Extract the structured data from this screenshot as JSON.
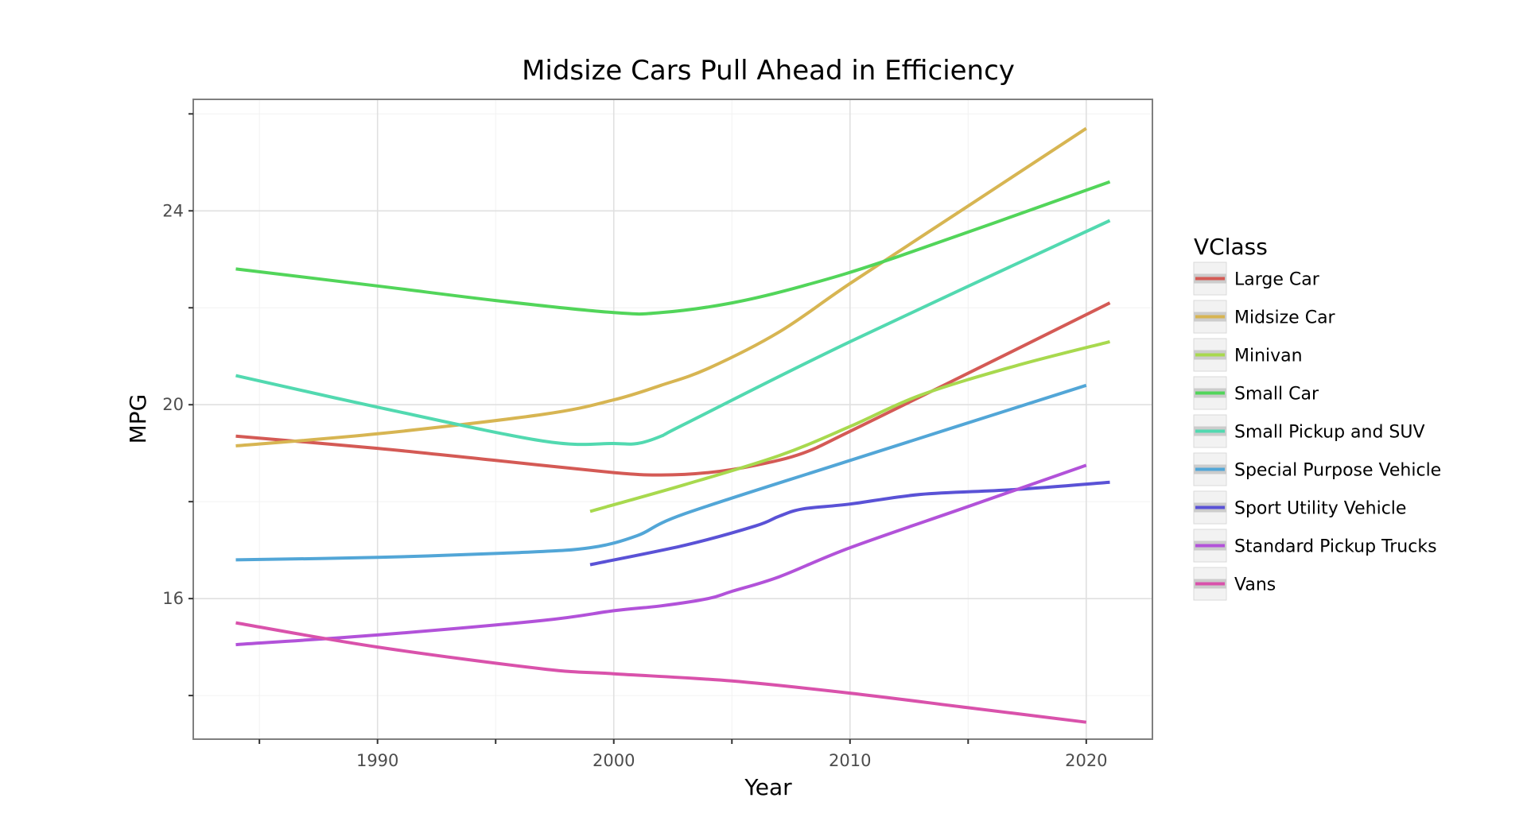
{
  "chart_data": {
    "type": "line",
    "title": "Midsize Cars Pull Ahead in Efficiency",
    "xlabel": "Year",
    "ylabel": "MPG",
    "xlim": [
      1982.2,
      2022.8
    ],
    "ylim": [
      13.1,
      26.3
    ],
    "x_ticks": [
      1990,
      2000,
      2010,
      2020
    ],
    "y_ticks": [
      16,
      20,
      24
    ],
    "grid": true,
    "legend": {
      "title": "VClass",
      "placement": "right"
    },
    "series": [
      {
        "name": "Large Car",
        "color": "#d45a55",
        "points": [
          [
            1984,
            19.35
          ],
          [
            1990,
            19.1
          ],
          [
            1995,
            18.85
          ],
          [
            2000,
            18.6
          ],
          [
            2002,
            18.55
          ],
          [
            2004,
            18.6
          ],
          [
            2006,
            18.75
          ],
          [
            2008,
            19.0
          ],
          [
            2010,
            19.45
          ],
          [
            2015,
            20.65
          ],
          [
            2021,
            22.1
          ]
        ]
      },
      {
        "name": "Midsize Car",
        "color": "#d7b552",
        "points": [
          [
            1984,
            19.15
          ],
          [
            1990,
            19.4
          ],
          [
            1997,
            19.8
          ],
          [
            2000,
            20.1
          ],
          [
            2002,
            20.4
          ],
          [
            2004,
            20.75
          ],
          [
            2007,
            21.5
          ],
          [
            2010,
            22.5
          ],
          [
            2015,
            24.1
          ],
          [
            2020,
            25.7
          ]
        ]
      },
      {
        "name": "Minivan",
        "color": "#a8d94e",
        "points": [
          [
            1999,
            17.8
          ],
          [
            2003,
            18.35
          ],
          [
            2007,
            18.95
          ],
          [
            2010,
            19.55
          ],
          [
            2013,
            20.2
          ],
          [
            2017,
            20.8
          ],
          [
            2021,
            21.3
          ]
        ]
      },
      {
        "name": "Small Car",
        "color": "#52d55a",
        "points": [
          [
            1984,
            22.8
          ],
          [
            1990,
            22.45
          ],
          [
            1995,
            22.15
          ],
          [
            2000,
            21.9
          ],
          [
            2002,
            21.9
          ],
          [
            2005,
            22.1
          ],
          [
            2008,
            22.45
          ],
          [
            2012,
            23.05
          ],
          [
            2021,
            24.6
          ]
        ]
      },
      {
        "name": "Small Pickup and SUV",
        "color": "#52d9b0",
        "points": [
          [
            1984,
            20.6
          ],
          [
            1990,
            19.95
          ],
          [
            1997,
            19.25
          ],
          [
            2000,
            19.2
          ],
          [
            2001,
            19.2
          ],
          [
            2002,
            19.35
          ],
          [
            2003,
            19.6
          ],
          [
            2010,
            21.3
          ],
          [
            2021,
            23.8
          ]
        ]
      },
      {
        "name": "Special Purpose Vehicle",
        "color": "#52a6d7",
        "points": [
          [
            1984,
            16.8
          ],
          [
            1990,
            16.85
          ],
          [
            1996,
            16.95
          ],
          [
            1999,
            17.05
          ],
          [
            2001,
            17.3
          ],
          [
            2003,
            17.75
          ],
          [
            2010,
            18.85
          ],
          [
            2020,
            20.4
          ]
        ]
      },
      {
        "name": "Sport Utility Vehicle",
        "color": "#5a52d6",
        "points": [
          [
            1999,
            16.7
          ],
          [
            2003,
            17.1
          ],
          [
            2006,
            17.5
          ],
          [
            2007,
            17.7
          ],
          [
            2008,
            17.85
          ],
          [
            2010,
            17.95
          ],
          [
            2013,
            18.15
          ],
          [
            2017,
            18.25
          ],
          [
            2021,
            18.4
          ]
        ]
      },
      {
        "name": "Standard Pickup Trucks",
        "color": "#b252d9",
        "points": [
          [
            1984,
            15.05
          ],
          [
            1990,
            15.25
          ],
          [
            1997,
            15.55
          ],
          [
            2000,
            15.75
          ],
          [
            2002,
            15.85
          ],
          [
            2004,
            16.0
          ],
          [
            2005,
            16.15
          ],
          [
            2007,
            16.45
          ],
          [
            2010,
            17.05
          ],
          [
            2015,
            17.9
          ],
          [
            2020,
            18.75
          ]
        ]
      },
      {
        "name": "Vans",
        "color": "#d952ab",
        "points": [
          [
            1984,
            15.5
          ],
          [
            1990,
            15.0
          ],
          [
            1997,
            14.55
          ],
          [
            2000,
            14.45
          ],
          [
            2005,
            14.3
          ],
          [
            2010,
            14.05
          ],
          [
            2015,
            13.75
          ],
          [
            2020,
            13.45
          ]
        ]
      }
    ]
  }
}
